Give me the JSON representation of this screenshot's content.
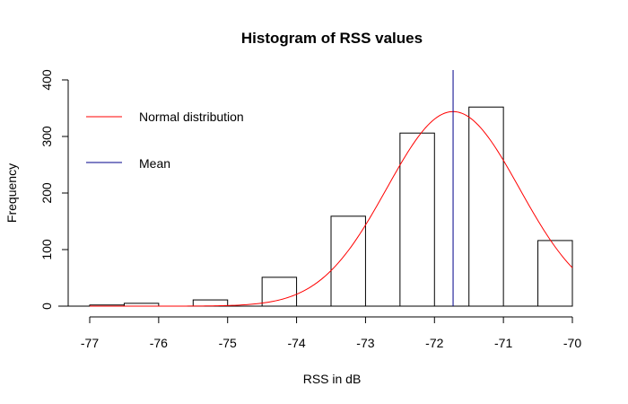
{
  "chart_data": {
    "type": "bar",
    "title": "Histogram of RSS values",
    "xlabel": "RSS in dB",
    "ylabel": "Frequency",
    "xlim": [
      -77,
      -70
    ],
    "ylim": [
      0,
      400
    ],
    "x_ticks": [
      -77,
      -76,
      -75,
      -74,
      -73,
      -72,
      -71,
      -70
    ],
    "y_ticks": [
      0,
      100,
      200,
      300,
      400
    ],
    "bins": [
      {
        "from": -77.0,
        "to": -76.5,
        "count": 2
      },
      {
        "from": -76.5,
        "to": -76.0,
        "count": 5
      },
      {
        "from": -75.5,
        "to": -75.0,
        "count": 11
      },
      {
        "from": -74.5,
        "to": -74.0,
        "count": 51
      },
      {
        "from": -73.5,
        "to": -73.0,
        "count": 159
      },
      {
        "from": -72.5,
        "to": -72.0,
        "count": 306
      },
      {
        "from": -71.5,
        "to": -71.0,
        "count": 352
      },
      {
        "from": -70.5,
        "to": -70.0,
        "count": 116
      }
    ],
    "normal_curve": {
      "name": "Normal distribution",
      "color": "#ff0000",
      "mean": -71.73,
      "sd": 0.96,
      "peak_frequency": 344
    },
    "mean_line": {
      "name": "Mean",
      "color": "#00008b",
      "x": -71.73
    },
    "legend": {
      "position": "top-left",
      "entries": [
        {
          "label": "Normal distribution",
          "color": "#ff0000"
        },
        {
          "label": "Mean",
          "color": "#00008b"
        }
      ]
    },
    "grid": false
  }
}
